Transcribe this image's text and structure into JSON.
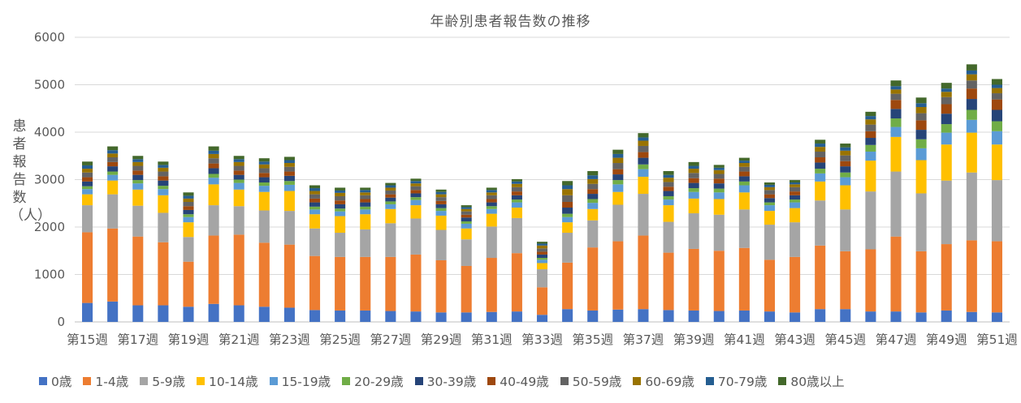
{
  "chart_data": {
    "type": "bar",
    "stacked": true,
    "title": "年齢別患者報告数の推移",
    "xlabel": "",
    "ylabel": "患者報告数（人）",
    "ylim": [
      0,
      6000
    ],
    "yticks": [
      0,
      1000,
      2000,
      3000,
      4000,
      5000,
      6000
    ],
    "grid": true,
    "legend_position": "bottom",
    "categories": [
      "第15週",
      "第16週",
      "第17週",
      "第18週",
      "第19週",
      "第20週",
      "第21週",
      "第22週",
      "第23週",
      "第24週",
      "第25週",
      "第26週",
      "第27週",
      "第28週",
      "第29週",
      "第30週",
      "第31週",
      "第32週",
      "第33週",
      "第34週",
      "第35週",
      "第36週",
      "第37週",
      "第38週",
      "第39週",
      "第40週",
      "第41週",
      "第42週",
      "第43週",
      "第44週",
      "第45週",
      "第46週",
      "第47週",
      "第48週",
      "第49週",
      "第50週",
      "第51週"
    ],
    "x_tick_labels": [
      "第15週",
      "",
      "第17週",
      "",
      "第19週",
      "",
      "第21週",
      "",
      "第23週",
      "",
      "第25週",
      "",
      "第27週",
      "",
      "第29週",
      "",
      "第31週",
      "",
      "第33週",
      "",
      "第35週",
      "",
      "第37週",
      "",
      "第39週",
      "",
      "第41週",
      "",
      "第43週",
      "",
      "第45週",
      "",
      "第47週",
      "",
      "第49週",
      "",
      "第51週"
    ],
    "series": [
      {
        "name": "0歳",
        "color": "#4472C4",
        "values": [
          400,
          430,
          350,
          350,
          320,
          380,
          350,
          320,
          300,
          250,
          240,
          240,
          230,
          220,
          200,
          200,
          210,
          220,
          150,
          270,
          240,
          260,
          270,
          250,
          240,
          230,
          240,
          220,
          200,
          270,
          270,
          220,
          220,
          200,
          240,
          210,
          200
        ]
      },
      {
        "name": "1-4歳",
        "color": "#ED7D31",
        "values": [
          1490,
          1540,
          1450,
          1330,
          950,
          1440,
          1490,
          1350,
          1330,
          1140,
          1130,
          1130,
          1140,
          1200,
          1100,
          980,
          1140,
          1230,
          580,
          980,
          1330,
          1440,
          1550,
          1210,
          1300,
          1270,
          1320,
          1090,
          1170,
          1340,
          1220,
          1310,
          1580,
          1290,
          1400,
          1510,
          1500
        ]
      },
      {
        "name": "5-9歳",
        "color": "#A5A5A5",
        "values": [
          570,
          720,
          650,
          620,
          520,
          640,
          600,
          680,
          710,
          580,
          510,
          580,
          710,
          760,
          640,
          560,
          660,
          740,
          380,
          630,
          570,
          770,
          880,
          650,
          750,
          760,
          810,
          740,
          730,
          950,
          880,
          1220,
          1370,
          1220,
          1340,
          1430,
          1290
        ]
      },
      {
        "name": "10-14歳",
        "color": "#FFC000",
        "values": [
          230,
          290,
          340,
          370,
          310,
          440,
          350,
          390,
          420,
          300,
          350,
          320,
          300,
          280,
          300,
          230,
          270,
          220,
          130,
          220,
          240,
          270,
          360,
          350,
          310,
          330,
          360,
          290,
          300,
          400,
          510,
          650,
          730,
          700,
          760,
          840,
          750
        ]
      },
      {
        "name": "15-19歳",
        "color": "#5B9BD5",
        "values": [
          110,
          120,
          130,
          130,
          110,
          140,
          140,
          130,
          130,
          100,
          100,
          100,
          100,
          110,
          100,
          100,
          100,
          110,
          70,
          110,
          130,
          160,
          160,
          120,
          140,
          140,
          150,
          120,
          120,
          170,
          170,
          190,
          210,
          250,
          250,
          270,
          280
        ]
      },
      {
        "name": "20-29歳",
        "color": "#70AD47",
        "values": [
          60,
          70,
          70,
          70,
          60,
          80,
          70,
          70,
          80,
          60,
          60,
          60,
          60,
          60,
          60,
          50,
          60,
          60,
          40,
          70,
          80,
          90,
          100,
          70,
          80,
          80,
          80,
          60,
          60,
          100,
          100,
          140,
          180,
          190,
          180,
          210,
          210
        ]
      },
      {
        "name": "30-39歳",
        "color": "#264478",
        "values": [
          100,
          110,
          110,
          110,
          90,
          120,
          100,
          110,
          110,
          90,
          90,
          90,
          80,
          80,
          80,
          80,
          80,
          90,
          70,
          130,
          110,
          120,
          140,
          110,
          110,
          110,
          110,
          90,
          90,
          130,
          130,
          150,
          200,
          200,
          220,
          230,
          240
        ]
      },
      {
        "name": "40-49歳",
        "color": "#9E480E",
        "values": [
          90,
          90,
          90,
          90,
          80,
          100,
          90,
          90,
          90,
          80,
          80,
          70,
          70,
          70,
          70,
          60,
          70,
          80,
          60,
          120,
          100,
          110,
          120,
          90,
          100,
          100,
          100,
          80,
          80,
          110,
          110,
          140,
          190,
          200,
          200,
          220,
          220
        ]
      },
      {
        "name": "50-59歳",
        "color": "#636363",
        "values": [
          100,
          100,
          100,
          100,
          90,
          110,
          100,
          100,
          100,
          90,
          90,
          80,
          80,
          80,
          80,
          70,
          80,
          90,
          70,
          140,
          110,
          130,
          130,
          100,
          110,
          100,
          100,
          90,
          90,
          120,
          120,
          140,
          130,
          150,
          150,
          170,
          130
        ]
      },
      {
        "name": "60-69歳",
        "color": "#997300",
        "values": [
          80,
          80,
          80,
          80,
          70,
          90,
          80,
          80,
          80,
          70,
          70,
          60,
          60,
          60,
          60,
          50,
          60,
          70,
          60,
          130,
          100,
          110,
          110,
          90,
          90,
          80,
          80,
          60,
          60,
          100,
          100,
          110,
          90,
          130,
          110,
          130,
          110
        ]
      },
      {
        "name": "70-79歳",
        "color": "#255E91",
        "values": [
          70,
          70,
          60,
          60,
          60,
          70,
          60,
          60,
          60,
          60,
          50,
          50,
          50,
          50,
          50,
          40,
          50,
          50,
          40,
          80,
          80,
          80,
          70,
          60,
          60,
          50,
          50,
          50,
          40,
          70,
          70,
          70,
          70,
          80,
          70,
          80,
          70
        ]
      },
      {
        "name": "80歳以上",
        "color": "#43682B",
        "values": [
          80,
          80,
          70,
          70,
          70,
          90,
          70,
          70,
          70,
          60,
          60,
          50,
          50,
          50,
          50,
          40,
          50,
          50,
          40,
          90,
          90,
          90,
          90,
          80,
          80,
          60,
          60,
          50,
          50,
          80,
          80,
          90,
          120,
          120,
          120,
          130,
          120
        ]
      }
    ]
  }
}
